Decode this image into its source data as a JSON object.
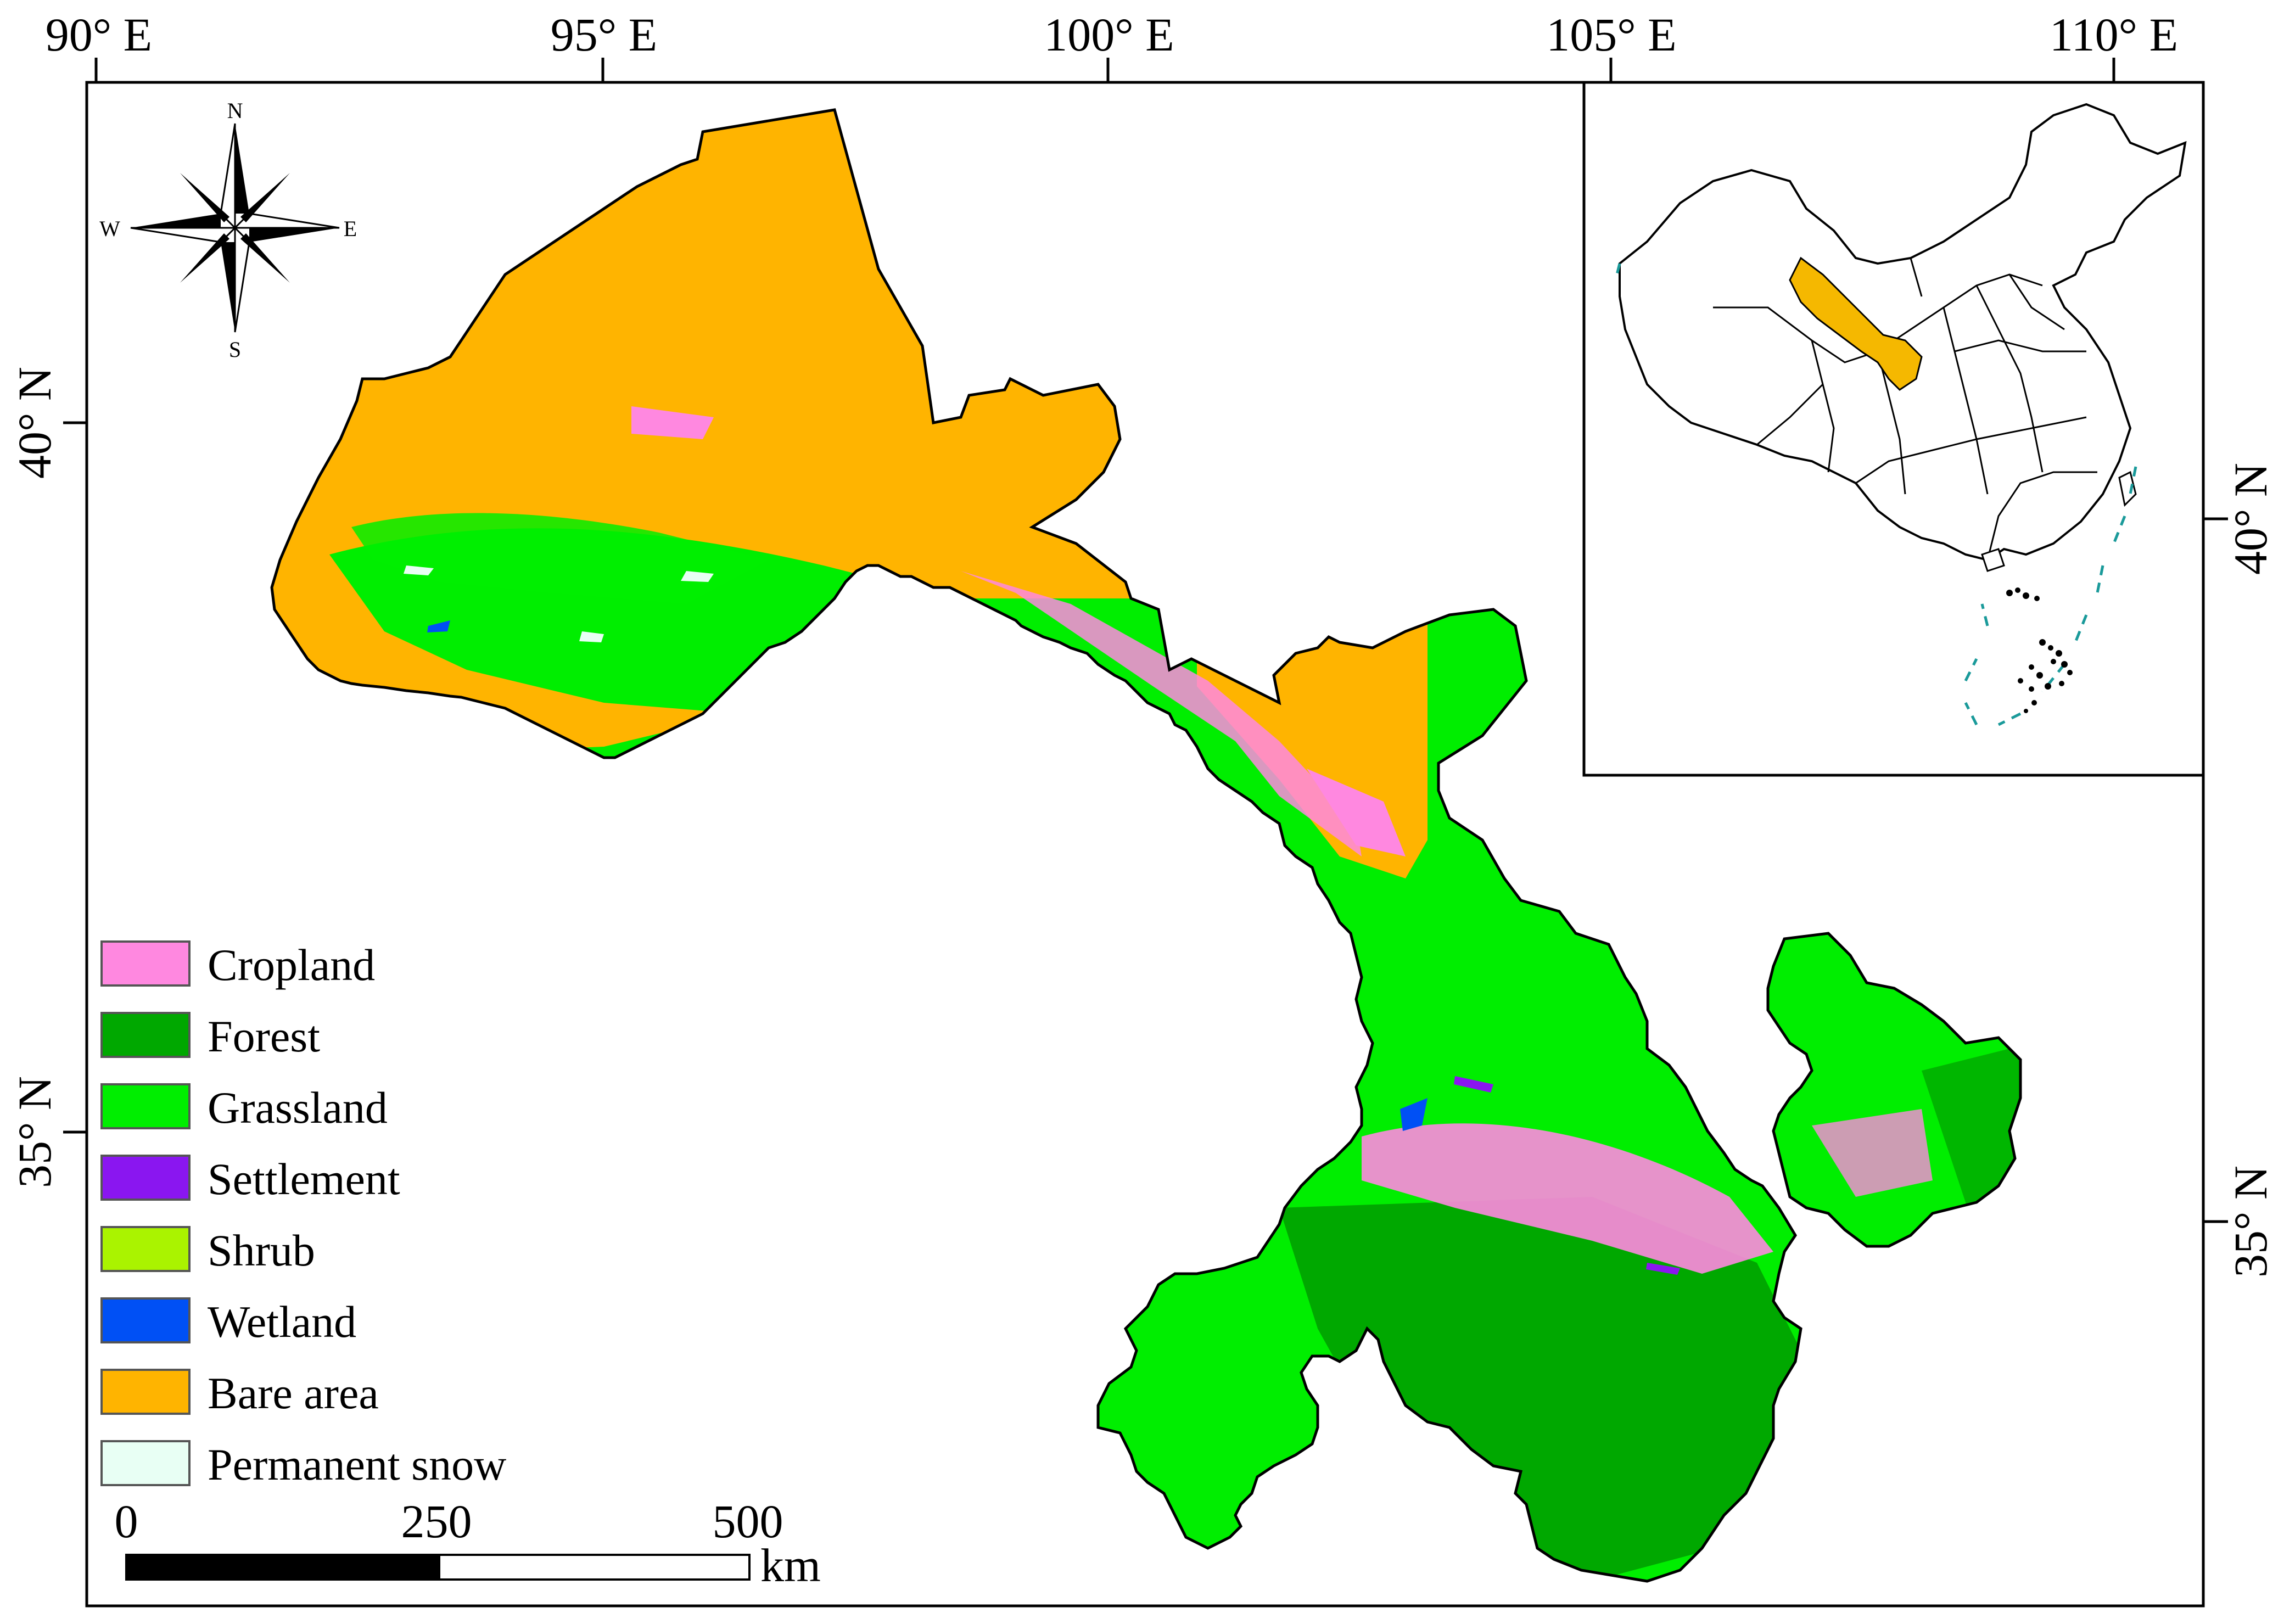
{
  "axes": {
    "top_ticks": [
      "90° E",
      "95° E",
      "100° E",
      "105° E",
      "110° E"
    ],
    "left_ticks": [
      "40° N",
      "35° N"
    ],
    "right_ticks": [
      "40° N",
      "35° N"
    ]
  },
  "compass": {
    "north": "N",
    "south": "S",
    "east": "E",
    "west": "W"
  },
  "legend": {
    "items": [
      {
        "label": "Cropland",
        "color": "#ff88e0"
      },
      {
        "label": "Forest",
        "color": "#00a800"
      },
      {
        "label": "Grassland",
        "color": "#00ee00"
      },
      {
        "label": "Settlement",
        "color": "#8a16f0"
      },
      {
        "label": "Shrub",
        "color": "#aaf300"
      },
      {
        "label": "Wetland",
        "color": "#0050f5"
      },
      {
        "label": "Bare area",
        "color": "#ffb400"
      },
      {
        "label": "Permanent snow",
        "color": "#e8fff4"
      }
    ]
  },
  "scalebar": {
    "ticks": [
      "0",
      "250",
      "500"
    ],
    "unit": "km"
  },
  "colors": {
    "bare": "#ffb400",
    "grass": "#00ee00",
    "forest": "#00a800",
    "crop": "#ff88e0",
    "inset_highlight": "#f5b800",
    "dash": "#1a9a9a"
  }
}
